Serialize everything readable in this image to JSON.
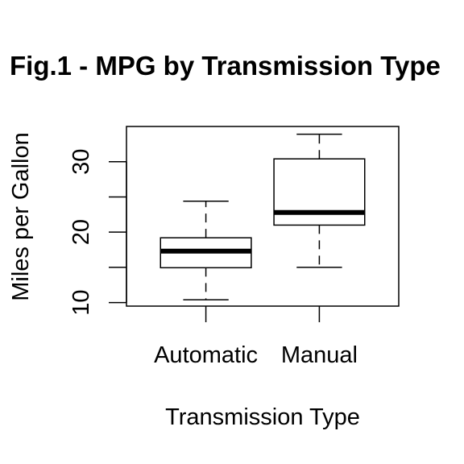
{
  "chart_data": {
    "type": "box",
    "title": "Fig.1 - MPG by Transmission Type",
    "xlabel": "Transmission Type",
    "ylabel": "Miles per Gallon",
    "ylim": [
      9.5,
      35.0
    ],
    "yticks": [
      10,
      20,
      30
    ],
    "categories": [
      "Automatic",
      "Manual"
    ],
    "boxes": [
      {
        "category": "Automatic",
        "whisker_low": 10.4,
        "q1": 14.95,
        "median": 17.3,
        "q3": 19.2,
        "whisker_high": 24.4
      },
      {
        "category": "Manual",
        "whisker_low": 15.0,
        "q1": 21.0,
        "median": 22.8,
        "q3": 30.4,
        "whisker_high": 33.9
      }
    ],
    "grid": false,
    "legend": "none"
  }
}
